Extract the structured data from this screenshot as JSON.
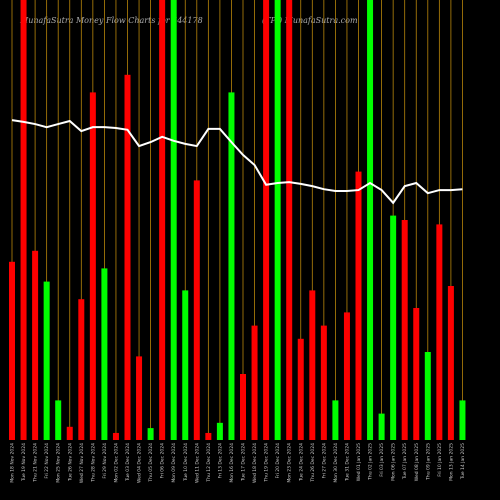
{
  "chart_data": {
    "type": "bar",
    "title": "MunafaSutra  Money Flow  Charts for 544178",
    "subtitle": "(TPI) MunafaSutra.com",
    "categories": [
      "Mon 18 Nov 2024",
      "Tue 19 Nov 2024",
      "Thu 21 Nov 2024",
      "Fri 22 Nov 2024",
      "Mon 25 Nov 2024",
      "Tue 26 Nov 2024",
      "Wed 27 Nov 2024",
      "Thu 28 Nov 2024",
      "Fri 29 Nov 2024",
      "Mon 02 Dec 2024",
      "Tue 03 Dec 2024",
      "Wed 04 Dec 2024",
      "Thu 05 Dec 2024",
      "Fri 06 Dec 2024",
      "Mon 09 Dec 2024",
      "Tue 10 Dec 2024",
      "Wed 11 Dec 2024",
      "Thu 12 Dec 2024",
      "Fri 13 Dec 2024",
      "Mon 16 Dec 2024",
      "Tue 17 Dec 2024",
      "Wed 18 Dec 2024",
      "Thu 19 Dec 2024",
      "Fri 20 Dec 2024",
      "Mon 23 Dec 2024",
      "Tue 24 Dec 2024",
      "Thu 26 Dec 2024",
      "Fri 27 Dec 2024",
      "Mon 30 Dec 2024",
      "Tue 31 Dec 2024",
      "Wed 01 Jan 2025",
      "Thu 02 Jan 2025",
      "Fri 03 Jan 2025",
      "Mon 06 Jan 2025",
      "Tue 07 Jan 2025",
      "Wed 08 Jan 2025",
      "Thu 09 Jan 2025",
      "Fri 10 Jan 2025",
      "Mon 13 Jan 2025",
      "Tue 14 Jan 2025"
    ],
    "values": [
      40.5,
      100,
      43,
      36,
      9,
      3,
      32,
      79,
      39,
      1.6,
      83,
      19,
      2.7,
      100,
      100,
      34,
      59,
      1.6,
      3.9,
      79,
      15,
      26,
      100,
      100,
      100,
      23,
      34,
      26,
      9,
      29,
      61,
      100,
      6,
      51,
      50,
      30,
      20,
      49,
      35,
      9
    ],
    "colors": [
      "#ff0000",
      "#ff0000",
      "#ff0000",
      "#00ff00",
      "#00ff00",
      "#ff0000",
      "#ff0000",
      "#ff0000",
      "#00ff00",
      "#ff0000",
      "#ff0000",
      "#ff0000",
      "#00ff00",
      "#ff0000",
      "#00ff00",
      "#00ff00",
      "#ff0000",
      "#ff0000",
      "#00ff00",
      "#00ff00",
      "#ff0000",
      "#ff0000",
      "#ff0000",
      "#00ff00",
      "#ff0000",
      "#ff0000",
      "#ff0000",
      "#ff0000",
      "#00ff00",
      "#ff0000",
      "#ff0000",
      "#00ff00",
      "#00ff00",
      "#00ff00",
      "#ff0000",
      "#ff0000",
      "#00ff00",
      "#ff0000",
      "#ff0000",
      "#00ff00"
    ],
    "line": {
      "color": "#ffffff",
      "values": [
        72.7,
        72.3,
        71.8,
        71.1,
        71.8,
        72.5,
        70.2,
        71.1,
        71.1,
        70.9,
        70.5,
        66.8,
        67.7,
        68.9,
        68,
        67.3,
        66.8,
        70.7,
        70.7,
        67.7,
        64.8,
        62.5,
        58,
        58.4,
        58.6,
        58.2,
        57.7,
        57,
        56.6,
        56.6,
        56.8,
        58.4,
        56.8,
        53.9,
        57.7,
        58.4,
        56.1,
        56.8,
        56.8,
        57
      ]
    },
    "ylim": [
      0,
      100
    ],
    "grid_color": "#b8860b"
  }
}
